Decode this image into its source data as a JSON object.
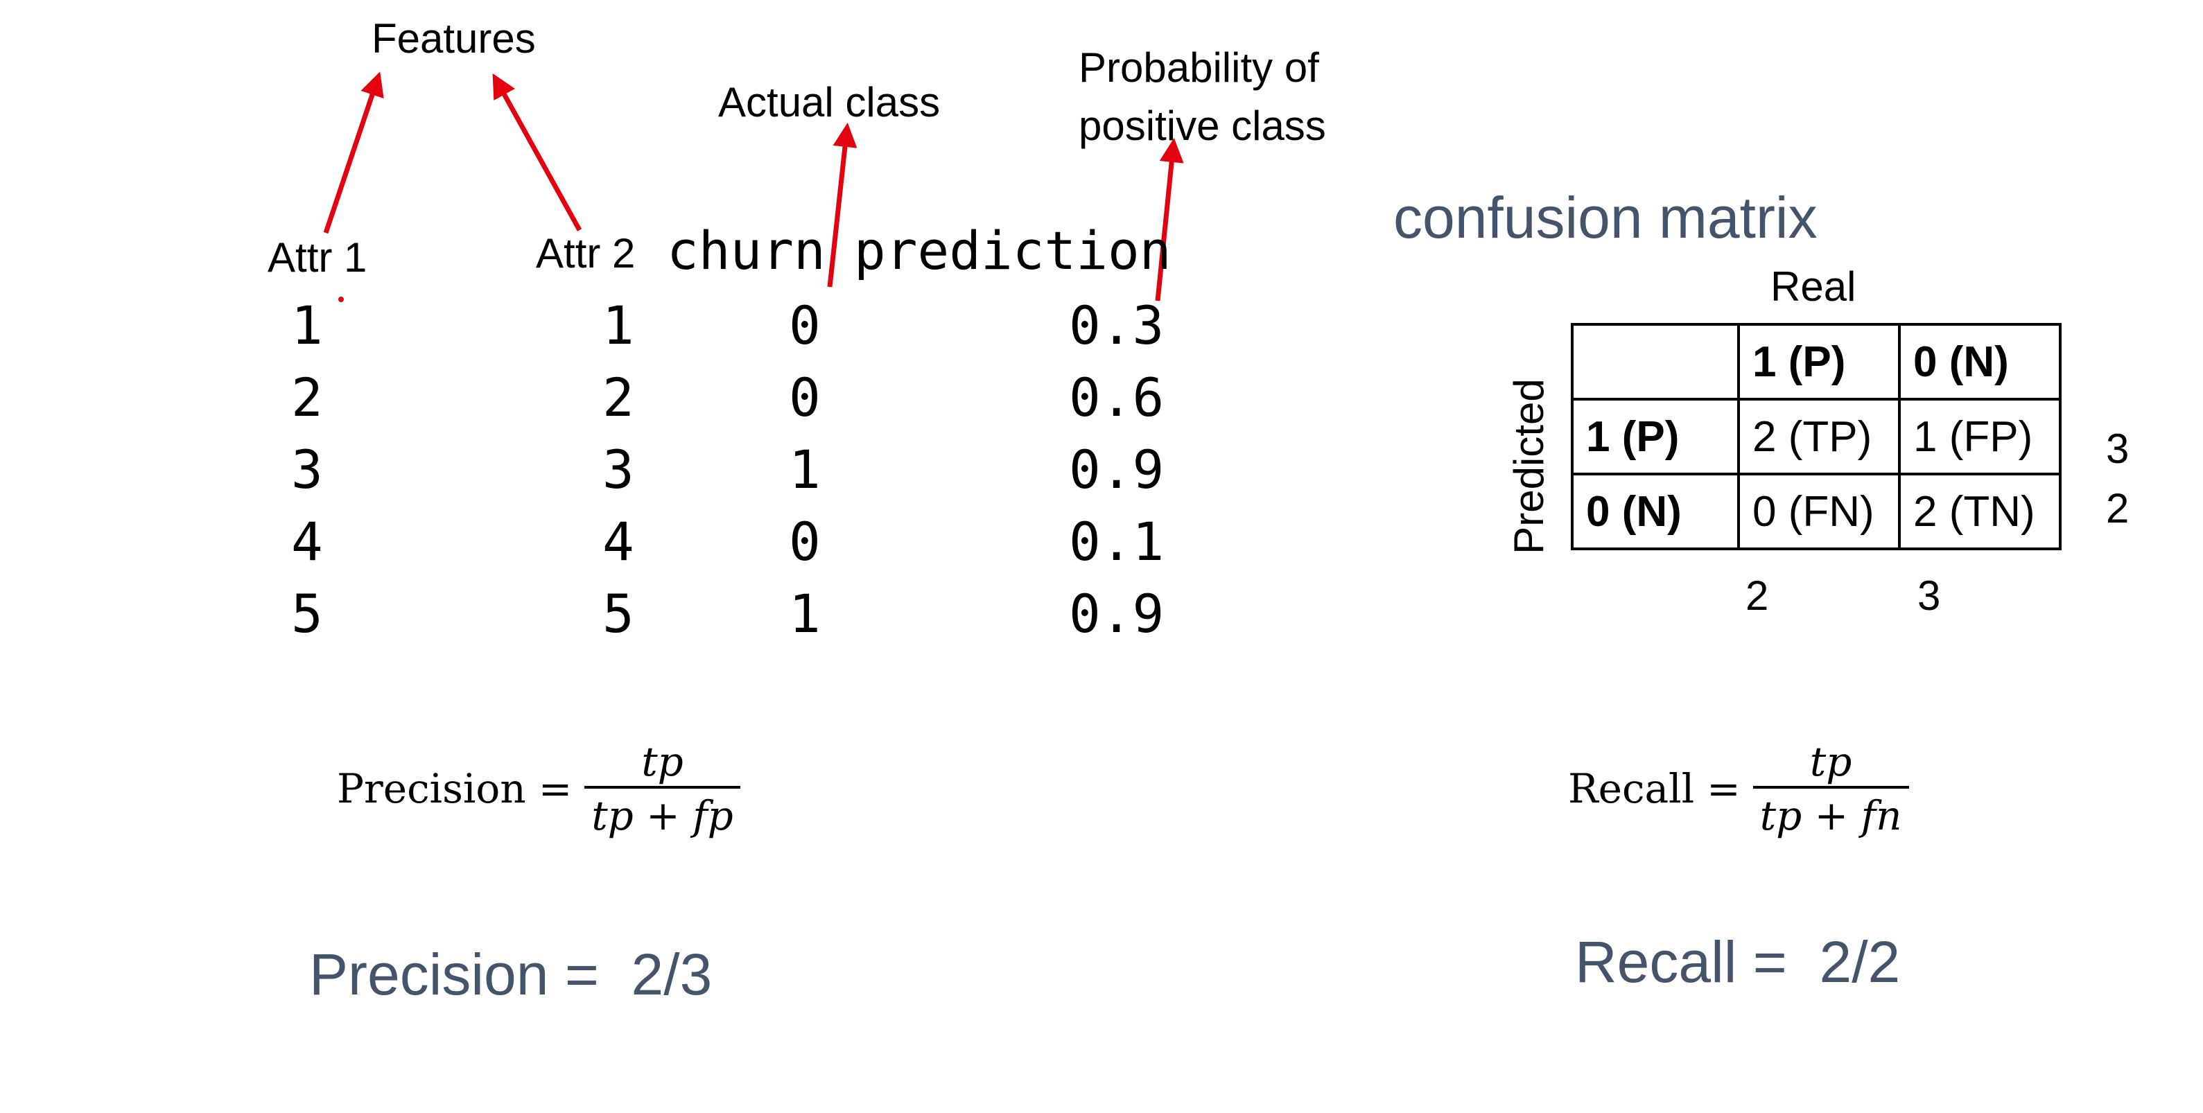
{
  "annotations": {
    "features": "Features",
    "actual_class": "Actual class",
    "probability_line1": "Probability of",
    "probability_line2": "positive class"
  },
  "table": {
    "headers": [
      "Attr 1",
      "Attr 2",
      "churn",
      "prediction"
    ],
    "rows": [
      {
        "attr1": "1",
        "attr2": "1",
        "churn": "0",
        "prediction": "0.3"
      },
      {
        "attr1": "2",
        "attr2": "2",
        "churn": "0",
        "prediction": "0.6"
      },
      {
        "attr1": "3",
        "attr2": "3",
        "churn": "1",
        "prediction": "0.9"
      },
      {
        "attr1": "4",
        "attr2": "4",
        "churn": "0",
        "prediction": "0.1"
      },
      {
        "attr1": "5",
        "attr2": "5",
        "churn": "1",
        "prediction": "0.9"
      }
    ]
  },
  "confusion_matrix": {
    "title": "confusion matrix",
    "column_axis_label": "Real",
    "row_axis_label": "Predicted",
    "column_headers": [
      "1 (P)",
      "0 (N)"
    ],
    "rows": [
      {
        "header": "1 (P)",
        "cells": [
          "2 (TP)",
          "1 (FP)"
        ],
        "row_total": "3"
      },
      {
        "header": "0 (N)",
        "cells": [
          "0 (FN)",
          "2 (TN)"
        ],
        "row_total": "2"
      }
    ],
    "column_totals": [
      "2",
      "3"
    ]
  },
  "formulas": {
    "precision": {
      "lhs": "Precision",
      "eq": "=",
      "numerator": "tp",
      "denominator": "tp + fp"
    },
    "recall": {
      "lhs": "Recall",
      "eq": "=",
      "numerator": "tp",
      "denominator": "tp + fn"
    }
  },
  "results": {
    "precision": "Precision =  2/3",
    "recall": "Recall =  2/2"
  },
  "colors": {
    "arrow": "#e3000f",
    "heading_blue": "#44546a"
  }
}
